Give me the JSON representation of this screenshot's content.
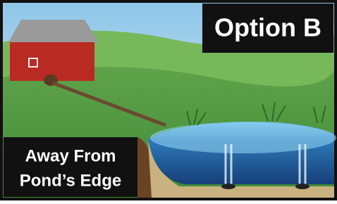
{
  "label": "Option B",
  "caption": {
    "lines": [
      "Away From",
      "Pond’s Edge"
    ]
  }
}
